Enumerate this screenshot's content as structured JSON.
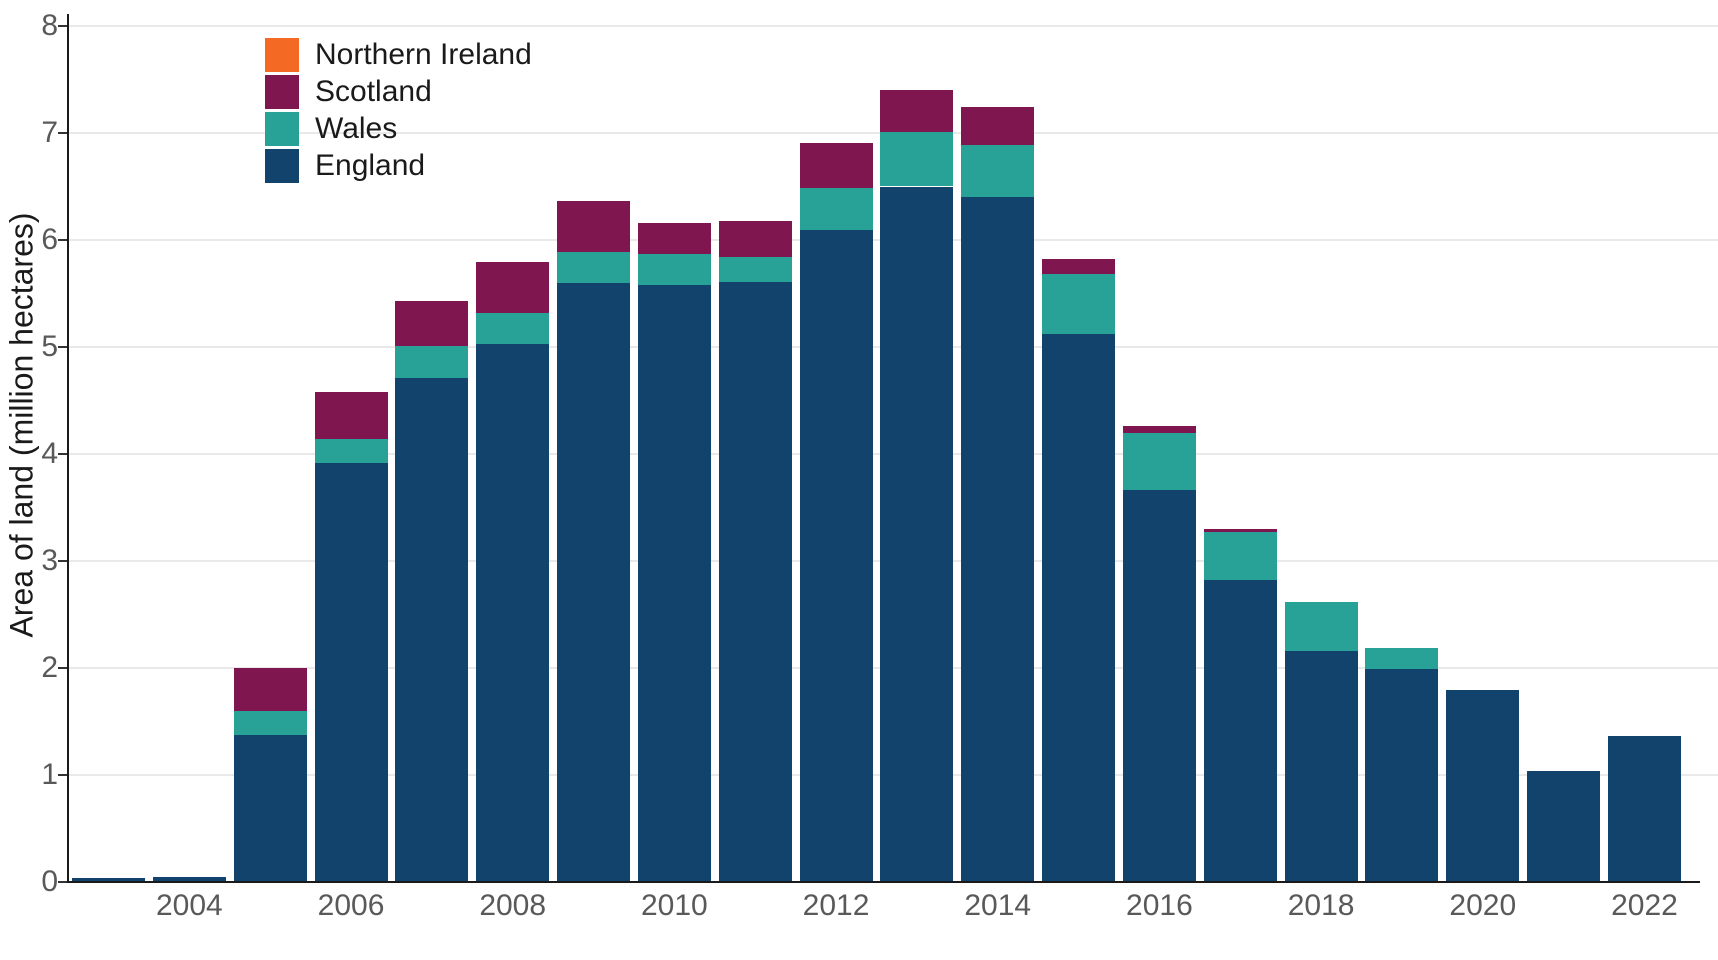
{
  "chart_data": {
    "type": "bar",
    "stacked": true,
    "title": "",
    "xlabel": "",
    "ylabel": "Area of land (million hectares)",
    "ylim": [
      0,
      8
    ],
    "yticks": [
      0,
      1,
      2,
      3,
      4,
      5,
      6,
      7,
      8
    ],
    "xtick_years": [
      2004,
      2006,
      2008,
      2010,
      2012,
      2014,
      2016,
      2018,
      2020,
      2022
    ],
    "categories": [
      2003,
      2004,
      2005,
      2006,
      2007,
      2008,
      2009,
      2010,
      2011,
      2012,
      2013,
      2014,
      2015,
      2016,
      2017,
      2018,
      2019,
      2020,
      2021,
      2022
    ],
    "series": [
      {
        "name": "England",
        "color": "#12436D",
        "values": [
          0.04,
          0.05,
          1.37,
          3.92,
          4.71,
          5.03,
          5.6,
          5.58,
          5.61,
          6.09,
          6.5,
          6.4,
          5.12,
          3.66,
          2.82,
          2.16,
          1.99,
          1.79,
          1.04,
          1.36
        ]
      },
      {
        "name": "Wales",
        "color": "#28A197",
        "values": [
          0,
          0,
          0.23,
          0.22,
          0.3,
          0.29,
          0.29,
          0.29,
          0.23,
          0.4,
          0.51,
          0.49,
          0.56,
          0.54,
          0.45,
          0.46,
          0.2,
          0,
          0,
          0
        ]
      },
      {
        "name": "Scotland",
        "color": "#801650",
        "values": [
          0,
          0,
          0.4,
          0.44,
          0.42,
          0.47,
          0.47,
          0.29,
          0.34,
          0.42,
          0.39,
          0.35,
          0.14,
          0.06,
          0.03,
          0,
          0,
          0,
          0,
          0
        ]
      },
      {
        "name": "Northern Ireland",
        "color": "#F46A25",
        "values": [
          0,
          0,
          0,
          0,
          0,
          0,
          0,
          0,
          0,
          0,
          0,
          0,
          0,
          0,
          0,
          0,
          0,
          0,
          0,
          0
        ]
      }
    ],
    "legend": [
      {
        "label": "Northern Ireland",
        "color": "#F46A25"
      },
      {
        "label": "Scotland",
        "color": "#801650"
      },
      {
        "label": "Wales",
        "color": "#28A197"
      },
      {
        "label": "England",
        "color": "#12436D"
      }
    ],
    "grid": "horizontal",
    "legend_position": "top-left",
    "axis_color": "#1a1a1a",
    "tick_label_color": "#595959",
    "grid_color": "#e9e9e9"
  }
}
